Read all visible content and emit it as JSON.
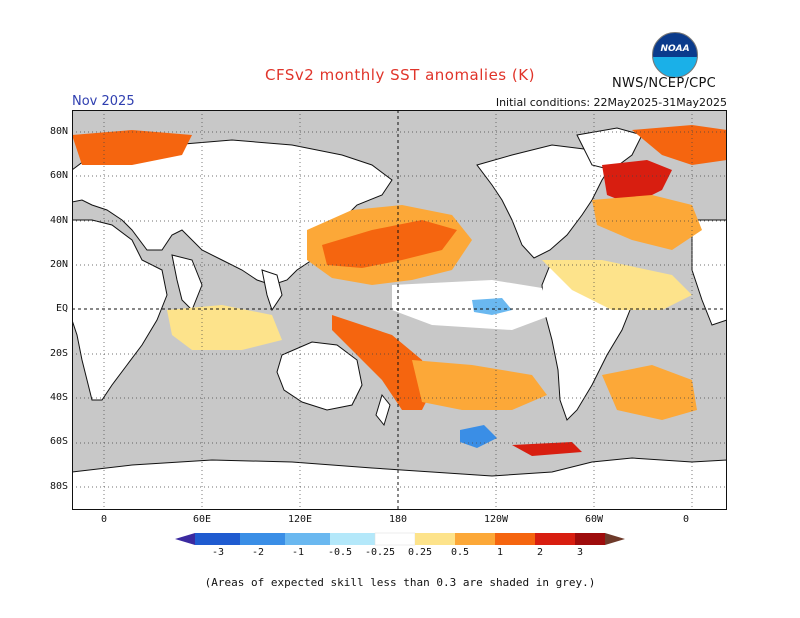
{
  "header": {
    "title": "CFSv2 monthly SST anomalies (K)",
    "organization": "NWS/NCEP/CPC",
    "month": "Nov 2025",
    "initial_conditions": "Initial conditions: 22May2025-31May2025",
    "logo_text": "NOAA"
  },
  "axes": {
    "lat_labels": [
      "80N",
      "60N",
      "40N",
      "20N",
      "EQ",
      "20S",
      "40S",
      "60S",
      "80S"
    ],
    "lon_labels": [
      "0",
      "60E",
      "120E",
      "180",
      "120W",
      "60W",
      "0"
    ]
  },
  "colorbar": {
    "labels": [
      "-3",
      "-2",
      "-1",
      "-0.5",
      "-0.25",
      "0.25",
      "0.5",
      "1",
      "2",
      "3"
    ],
    "colors": [
      "#3b2aa0",
      "#1f5bd0",
      "#3a8ee6",
      "#6ab8f0",
      "#b4e8fa",
      "#ffffff",
      "#fde38b",
      "#fca838",
      "#f5650f",
      "#d81e10",
      "#9e0c0c",
      "#6e3a2a"
    ]
  },
  "footer": {
    "note": "(Areas of expected skill less than 0.3 are shaded in grey.)"
  },
  "map": {
    "land_color": "#ffffff",
    "no_skill_color": "#c8c8c8",
    "grid": "dotted",
    "center_meridian": "180"
  }
}
